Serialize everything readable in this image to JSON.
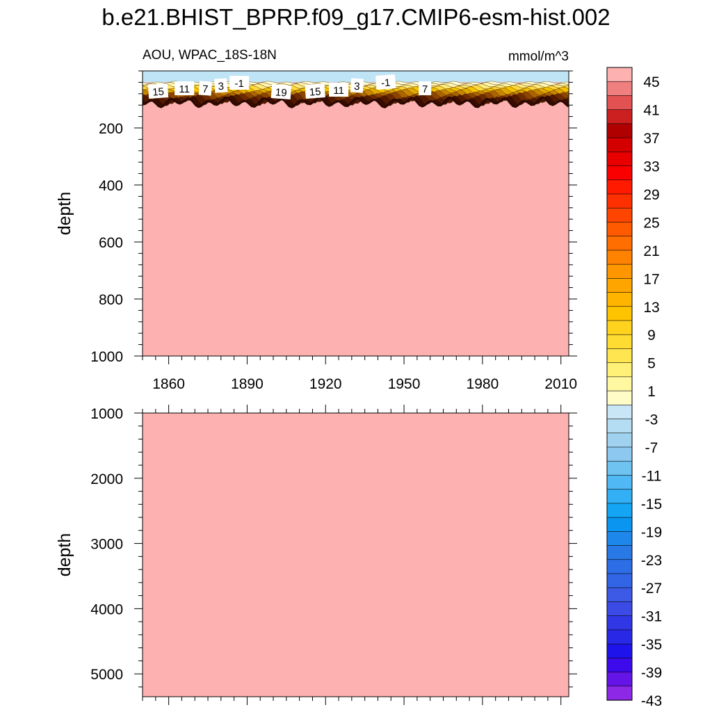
{
  "figure": {
    "title": "b.e21.BHIST_BPRP.f09_g17.CMIP6-esm-hist.002"
  },
  "chart_data": [
    {
      "type": "heatmap",
      "panel": "upper",
      "left_label": "AOU, WPAC_18S-18N",
      "right_label": "mmol/m^3",
      "ylabel": "depth",
      "xlabel": "",
      "xlim": [
        1850,
        2013
      ],
      "ylim": [
        1000,
        0
      ],
      "x_ticks": [
        "1860",
        "1890",
        "1920",
        "1950",
        "1980",
        "2010"
      ],
      "y_ticks": [
        "200",
        "400",
        "600",
        "800",
        "1000"
      ],
      "contour_labels": [
        "15",
        "11",
        "7",
        "3",
        "-1",
        "19",
        "15",
        "11",
        "3",
        "-1",
        "7"
      ],
      "background_value": ">45",
      "surface_value": "-3 to -1",
      "transition_depth": 110
    },
    {
      "type": "heatmap",
      "panel": "lower",
      "ylabel": "depth",
      "xlim": [
        1850,
        2013
      ],
      "ylim": [
        5350,
        1000
      ],
      "y_ticks": [
        "1000",
        "2000",
        "3000",
        "4000",
        "5000"
      ],
      "background_value": ">45"
    }
  ],
  "colorbar": {
    "labels": [
      "45",
      "41",
      "37",
      "33",
      "29",
      "25",
      "21",
      "17",
      "13",
      "9",
      "5",
      "1",
      "-3",
      "-7",
      "-11",
      "-15",
      "-19",
      "-23",
      "-27",
      "-31",
      "-35",
      "-39",
      "-43"
    ],
    "colors": [
      "#fdb1b1",
      "#f08080",
      "#e25252",
      "#cc2020",
      "#b00000",
      "#d40000",
      "#e80000",
      "#fa0000",
      "#ff1a00",
      "#ff3000",
      "#ff4500",
      "#ff5a00",
      "#ff6e00",
      "#ff8200",
      "#ff9600",
      "#ffa500",
      "#ffb400",
      "#ffc400",
      "#ffd21e",
      "#ffdc32",
      "#ffe650",
      "#fff078",
      "#fff8a0",
      "#fffcc8",
      "#c8e6f5",
      "#b4dcf2",
      "#a0d2f0",
      "#8cc8f0",
      "#6ec3f0",
      "#50b9f5",
      "#32aff5",
      "#14a5f5",
      "#0a96f0",
      "#1e87eb",
      "#2878e6",
      "#2d6ee6",
      "#3264e6",
      "#3c5ae6",
      "#3c4be6",
      "#3237e6",
      "#2828e6",
      "#1e14eb",
      "#3c0aeb",
      "#6414e6",
      "#8c28e6"
    ]
  }
}
